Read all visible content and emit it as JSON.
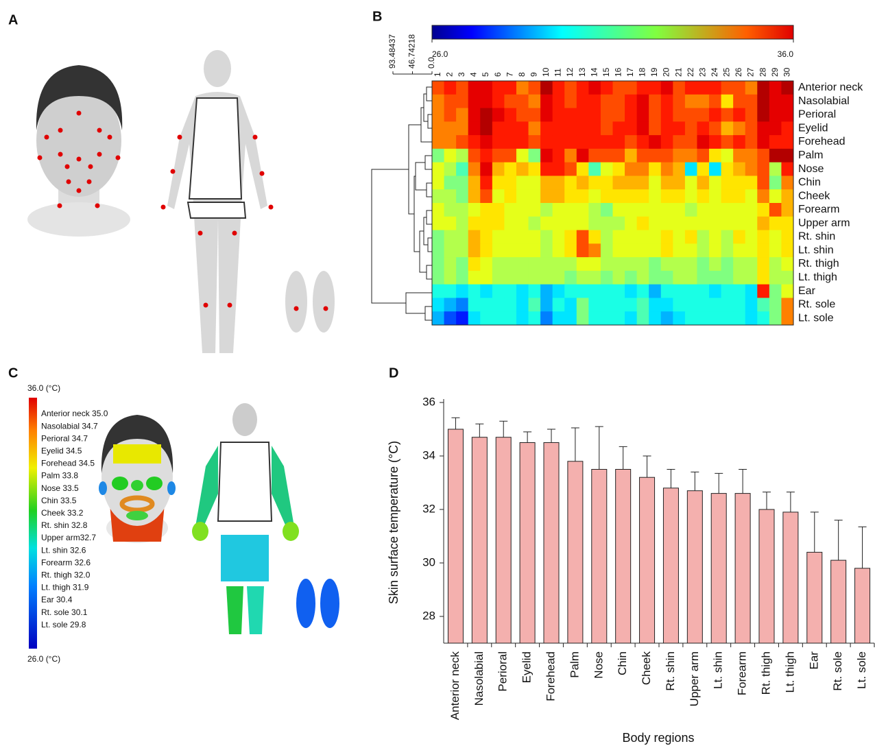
{
  "panel_labels": [
    "A",
    "B",
    "C",
    "D"
  ],
  "map_c": {
    "scale_top": "36.0 (°C)",
    "scale_bottom": "26.0 (°C)",
    "items": [
      "Anterior neck 35.0",
      "Nasolabial 34.7",
      "Perioral 34.7",
      "Eyelid 34.5",
      "Forehead 34.5",
      "Palm 33.8",
      "Nose 33.5",
      "Chin 33.5",
      "Cheek 33.2",
      "Rt. shin 32.8",
      "Upper arm32.7",
      "Lt. shin 32.6",
      "Forearm 32.6",
      "Rt. thigh 32.0",
      "Lt. thigh 31.9",
      "Ear 30.4",
      "Rt. sole 30.1",
      "Lt. sole 29.8"
    ]
  },
  "chart_data": [
    {
      "type": "heatmap",
      "columns": [
        "1",
        "2",
        "3",
        "4",
        "5",
        "6",
        "7",
        "8",
        "9",
        "10",
        "11",
        "12",
        "13",
        "14",
        "15",
        "16",
        "17",
        "18",
        "19",
        "20",
        "21",
        "22",
        "23",
        "24",
        "25",
        "26",
        "27",
        "28",
        "29",
        "30"
      ],
      "rows": [
        "Anterior neck",
        "Nasolabial",
        "Perioral",
        "Eyelid",
        "Forehead",
        "Palm",
        "Nose",
        "Chin",
        "Cheek",
        "Forearm",
        "Upper arm",
        "Rt. shin",
        "Lt. shin",
        "Rt. thigh",
        "Lt. thigh",
        "Ear",
        "Rt. sole",
        "Lt. sole"
      ],
      "vlim": [
        26,
        36
      ],
      "colorbar_ticks": [
        {
          "value": 26,
          "label": "26.0"
        },
        {
          "value": 36,
          "label": "36.0"
        }
      ],
      "dendrogram_ticks": [
        {
          "value": 0,
          "label": "0.0"
        },
        46.74218,
        93.48437
      ],
      "values": [
        [
          34,
          34.5,
          34,
          35,
          35,
          34.5,
          34.5,
          33.5,
          34,
          35.5,
          34.5,
          34,
          34.5,
          35,
          34.5,
          34,
          34,
          34.5,
          34.5,
          35,
          34,
          34.5,
          34.5,
          34.5,
          34,
          34,
          33.5,
          35.5,
          35,
          35.5
        ],
        [
          33.5,
          34,
          34,
          35,
          35,
          34.5,
          34,
          34,
          33.5,
          35,
          34.5,
          34,
          34.5,
          34.5,
          34,
          34,
          34.5,
          35,
          34,
          34.5,
          34,
          33.5,
          33.5,
          34,
          32.5,
          34,
          34,
          35.5,
          35,
          35
        ],
        [
          33.5,
          34,
          33.5,
          35,
          35.5,
          35,
          34.5,
          34,
          34,
          35,
          34.5,
          34.5,
          34.5,
          34.5,
          34,
          34,
          34.5,
          35,
          34,
          34.5,
          34,
          34,
          34,
          34.5,
          34,
          34.5,
          34,
          35.5,
          35,
          35
        ],
        [
          33.5,
          33.5,
          33.5,
          35,
          35.5,
          34.5,
          34.5,
          34.5,
          33.5,
          34.5,
          34.5,
          34.5,
          34.5,
          34.5,
          34,
          34.5,
          34.5,
          35,
          34,
          34.5,
          34.5,
          34,
          34.5,
          34,
          33,
          33.5,
          34,
          35,
          35,
          34.5
        ],
        [
          33.5,
          33.5,
          34,
          34.5,
          35,
          34.5,
          34.5,
          34.5,
          34,
          34.5,
          34.5,
          34.5,
          34.5,
          34.5,
          34.5,
          34.5,
          34,
          34.5,
          35,
          34.5,
          34,
          34,
          35,
          34.5,
          34,
          34.5,
          34,
          35,
          34.5,
          34.5
        ],
        [
          31,
          32,
          31.5,
          34,
          34.5,
          34,
          34,
          32,
          31,
          35,
          34.5,
          33.5,
          35,
          34,
          34,
          34,
          33,
          34,
          34,
          34,
          33.5,
          33.5,
          34,
          32.5,
          32,
          33.5,
          33.5,
          34,
          35.5,
          35.5
        ],
        [
          32,
          31.5,
          30.5,
          33.5,
          35,
          33,
          32.5,
          33,
          32.5,
          34.5,
          34.5,
          34,
          32.5,
          30.5,
          32,
          32.5,
          33.5,
          33.5,
          32.5,
          33.5,
          33,
          29.5,
          32.5,
          29.5,
          32.5,
          33,
          33.5,
          34,
          31.5,
          34.5
        ],
        [
          32,
          31,
          31,
          33,
          34.5,
          32.5,
          32.5,
          32,
          32,
          33,
          33,
          32.5,
          33,
          32.5,
          32.5,
          33,
          33,
          33,
          32,
          33,
          33,
          32,
          33,
          32,
          32.5,
          32.5,
          32.5,
          34,
          31,
          33.5
        ],
        [
          31.5,
          31.5,
          31,
          33,
          34,
          32,
          32.5,
          32,
          32,
          33,
          33,
          32.5,
          32.5,
          32,
          32.5,
          32.5,
          32.5,
          32.5,
          32,
          32.5,
          32.5,
          32,
          32.5,
          32,
          32.5,
          32.5,
          32,
          33.5,
          32,
          33
        ],
        [
          32,
          31.5,
          31.5,
          32,
          32.5,
          32.5,
          32,
          32,
          32,
          31.5,
          32,
          32,
          32,
          31.5,
          31,
          32,
          32,
          32,
          32,
          32,
          32,
          31.5,
          32,
          32,
          32,
          32,
          32,
          32.5,
          34,
          33
        ],
        [
          32,
          32,
          31.5,
          32.5,
          32.5,
          32.5,
          32,
          32,
          31.5,
          32,
          32,
          32,
          32,
          31.5,
          31.5,
          31.5,
          32,
          32.5,
          32,
          32,
          32,
          32,
          32,
          32,
          32,
          32,
          32,
          33,
          32.5,
          32.5
        ],
        [
          31,
          31.5,
          31.5,
          33,
          32.5,
          32,
          32,
          32,
          32,
          31.5,
          32,
          32.5,
          34,
          32.5,
          31.5,
          32,
          32,
          32,
          32,
          32.5,
          32,
          32.5,
          31.5,
          32,
          31.5,
          32.5,
          32,
          32.5,
          32,
          32.5
        ],
        [
          31,
          31.5,
          31.5,
          33,
          32.5,
          32,
          32,
          32,
          32,
          31.5,
          32,
          32.5,
          34,
          33.5,
          31.5,
          32,
          32,
          32,
          32,
          32.5,
          32,
          32,
          31.5,
          32,
          31.5,
          32,
          32,
          32.5,
          32,
          32.5
        ],
        [
          31,
          31.5,
          31,
          32.5,
          32,
          31.5,
          31.5,
          31.5,
          31.5,
          31.5,
          31.5,
          31.5,
          32,
          32,
          31.5,
          31.5,
          31.5,
          31.5,
          31,
          31.5,
          31.5,
          31.5,
          31,
          31.5,
          31,
          31.5,
          31.5,
          32.5,
          31.5,
          32
        ],
        [
          31,
          31.5,
          31,
          32,
          32,
          31.5,
          31.5,
          31.5,
          31.5,
          31.5,
          31.5,
          31,
          31.5,
          31.5,
          31,
          31.5,
          31,
          31.5,
          31,
          31,
          31.5,
          31.5,
          31,
          31,
          31,
          31.5,
          31.5,
          32.5,
          31.5,
          31.5
        ],
        [
          30,
          30,
          29.5,
          30,
          29.5,
          30,
          30,
          29.5,
          30,
          29,
          29.5,
          30,
          30,
          30,
          30,
          30,
          29.5,
          30,
          29,
          30,
          30,
          30,
          30,
          29.5,
          30,
          30,
          29.5,
          34.5,
          31,
          32
        ],
        [
          29.5,
          29,
          28.5,
          30,
          30,
          30,
          30,
          29.5,
          30.5,
          29,
          30,
          29.5,
          31,
          30,
          30,
          30,
          30,
          30.5,
          29.5,
          29.5,
          30,
          30,
          30,
          30,
          30,
          30,
          29.5,
          30.5,
          31,
          33.5
        ],
        [
          29,
          28,
          27.5,
          29.5,
          30,
          30,
          30,
          29.5,
          30,
          28.5,
          29.5,
          29.5,
          31,
          30,
          30,
          30,
          29.5,
          30.5,
          29.5,
          29,
          29.5,
          30,
          30,
          30,
          30,
          30,
          29.5,
          30,
          31,
          33.5
        ]
      ]
    },
    {
      "type": "bar",
      "x_label": "Body regions",
      "y_label": "Skin surface temperature (°C)",
      "categories": [
        "Anterior neck",
        "Nasolabial",
        "Perioral",
        "Eyelid",
        "Forehead",
        "Palm",
        "Nose",
        "Chin",
        "Cheek",
        "Rt. shin",
        "Upper arm",
        "Lt. shin",
        "Forearm",
        "Rt. thigh",
        "Lt. thigh",
        "Ear",
        "Rt. sole",
        "Lt. sole"
      ],
      "values": [
        35.0,
        34.7,
        34.7,
        34.5,
        34.5,
        33.8,
        33.5,
        33.5,
        33.2,
        32.8,
        32.7,
        32.6,
        32.6,
        32.0,
        31.9,
        30.4,
        30.1,
        29.8
      ],
      "errors": [
        0.43,
        0.5,
        0.6,
        0.4,
        0.5,
        1.25,
        1.6,
        0.85,
        0.8,
        0.7,
        0.7,
        0.75,
        0.9,
        0.65,
        0.75,
        1.5,
        1.5,
        1.55
      ],
      "color": "#f4b0ae",
      "ylim": [
        27,
        36
      ],
      "yticks": [
        28,
        30,
        32,
        34,
        36
      ]
    }
  ]
}
